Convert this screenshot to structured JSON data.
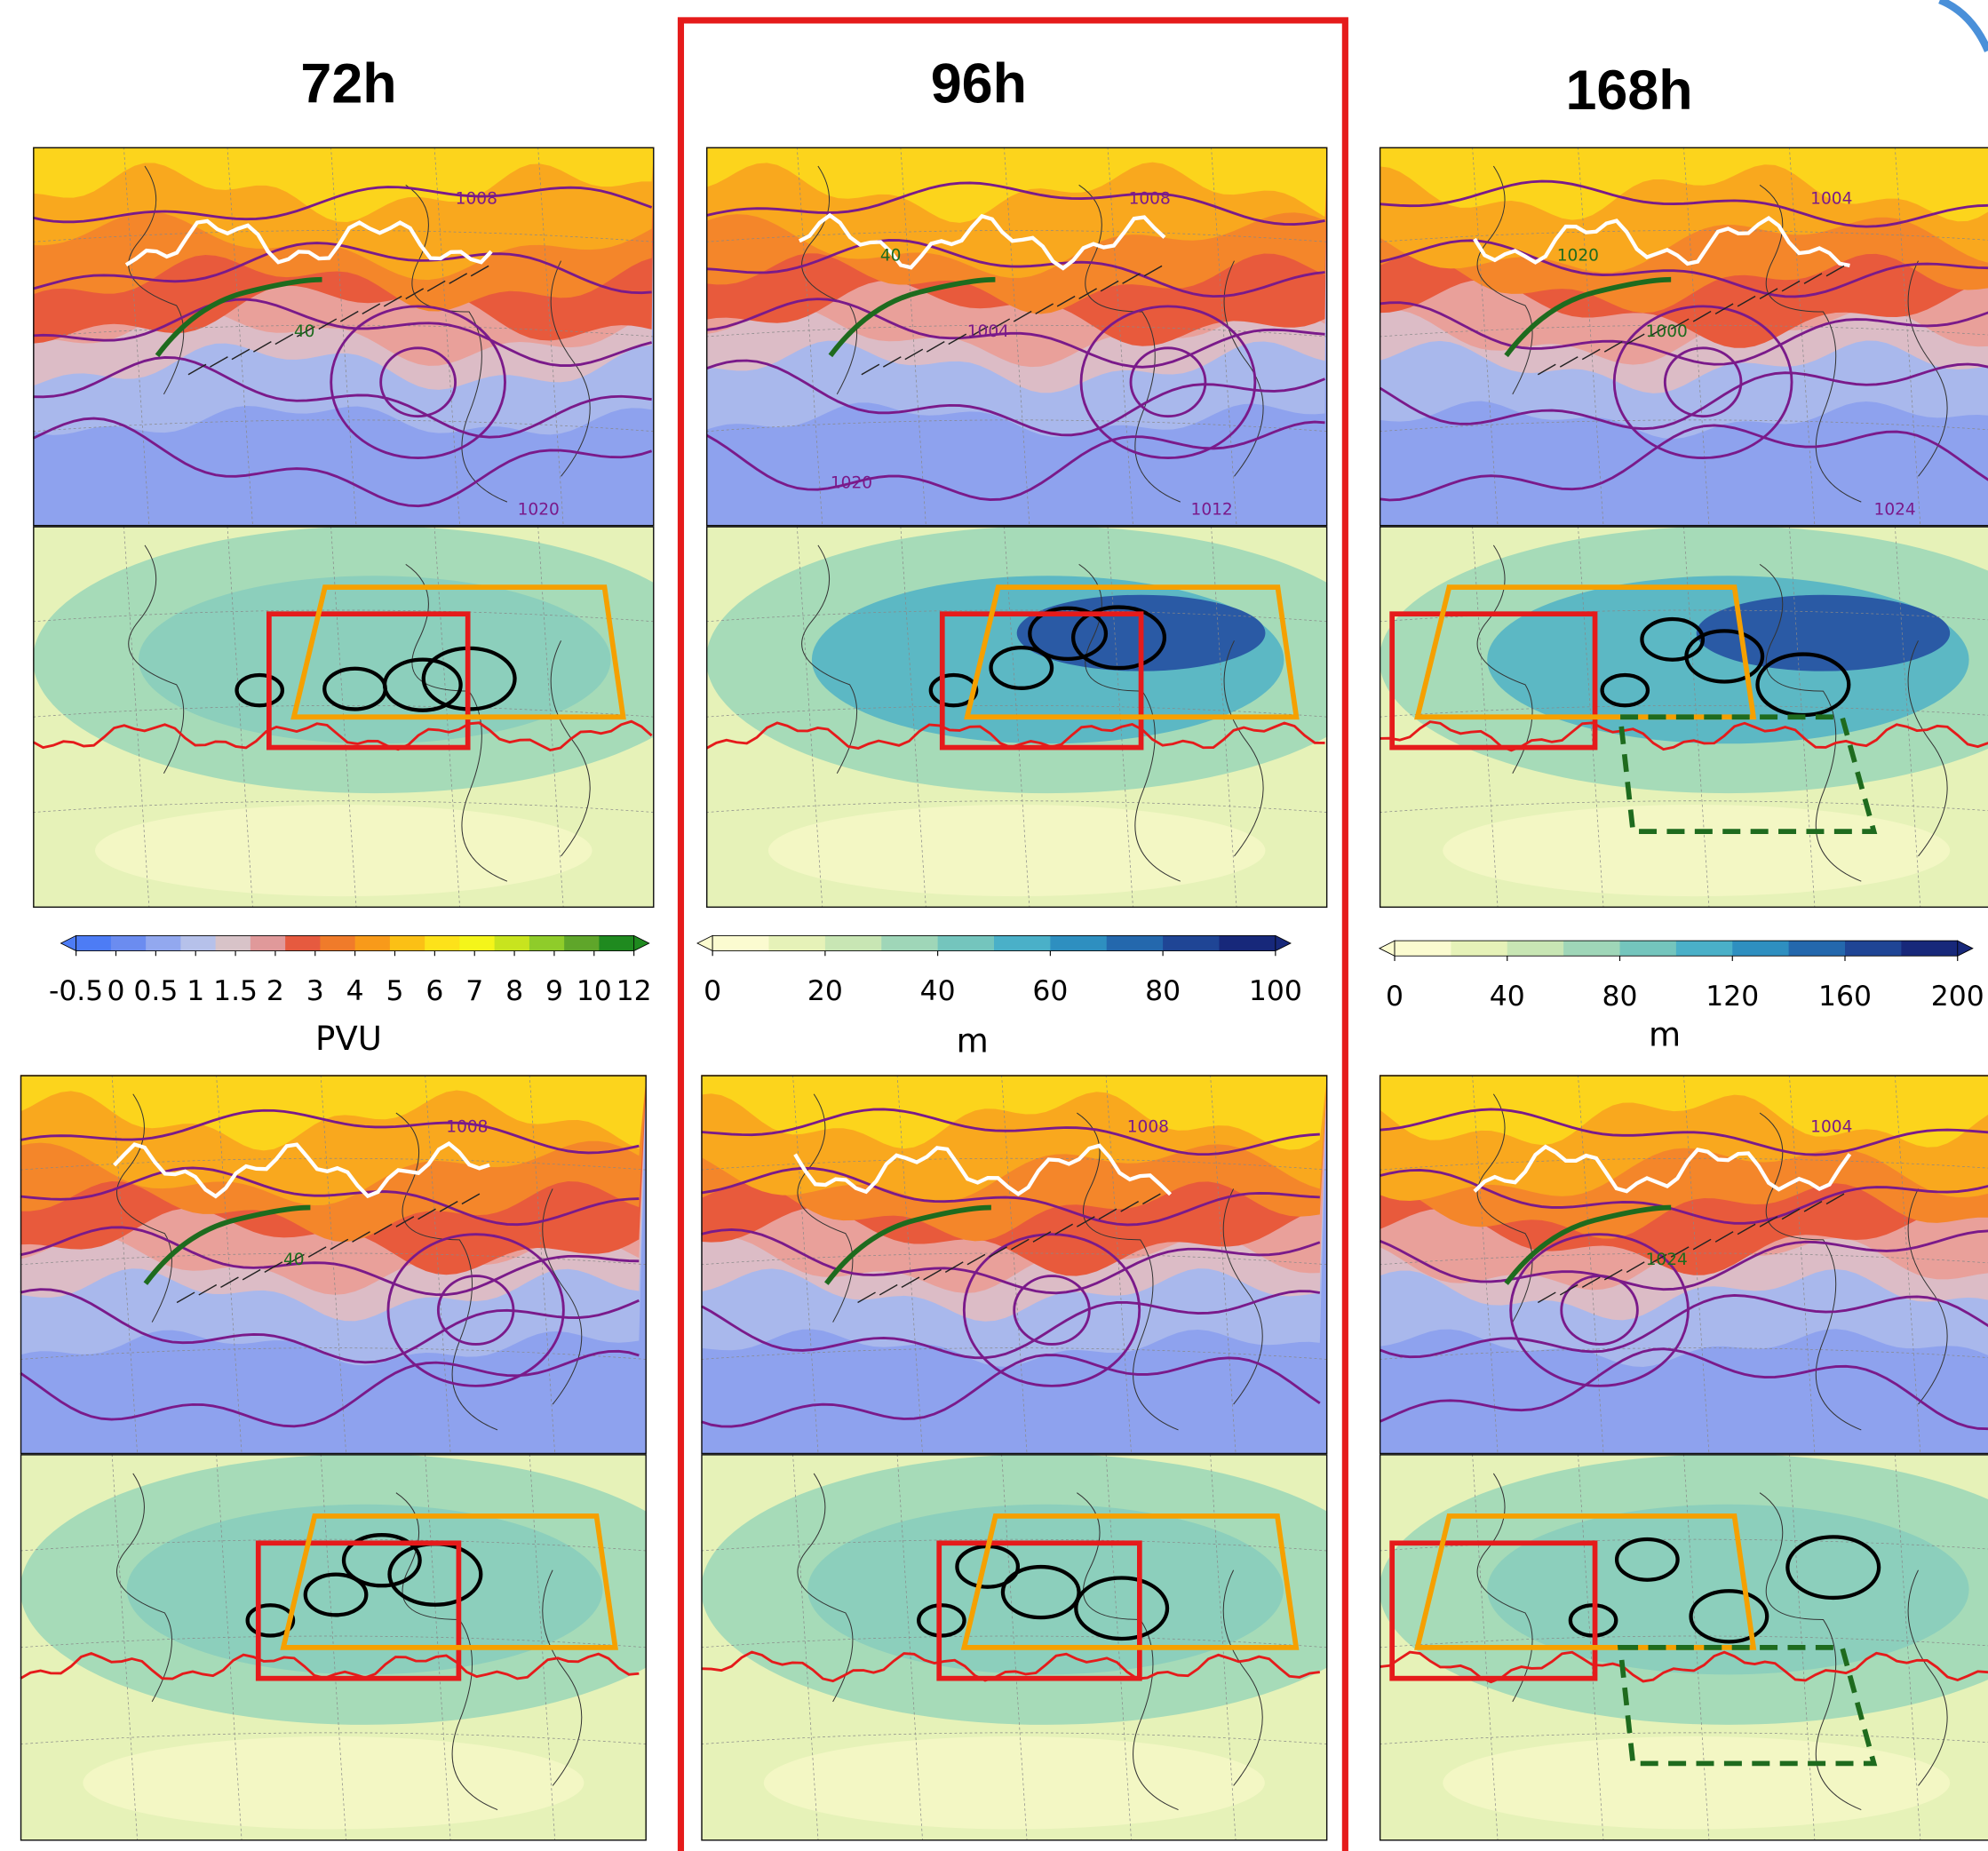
{
  "columns": [
    {
      "title": "72h",
      "colorbar": {
        "ticks": [
          -0.5,
          0,
          0.5,
          1,
          1.5,
          2,
          3,
          4,
          5,
          6,
          7,
          8,
          9,
          10,
          12
        ],
        "unit": "PVU"
      },
      "rows": [
        {
          "contour_labels": [
            "1008",
            "40",
            "1020"
          ]
        },
        {
          "contour_labels": [
            "1008",
            "40"
          ]
        }
      ]
    },
    {
      "title": "96h",
      "colorbar": {
        "ticks": [
          0,
          20,
          40,
          60,
          80,
          100
        ],
        "unit": "m"
      },
      "rows": [
        {
          "contour_labels": [
            "1008",
            "1004",
            "1012",
            "40",
            "1020"
          ]
        },
        {
          "contour_labels": [
            "1008"
          ]
        }
      ]
    },
    {
      "title": "168h",
      "colorbar": {
        "ticks": [
          0,
          40,
          80,
          120,
          160,
          200
        ],
        "unit": "m"
      },
      "rows": [
        {
          "contour_labels": [
            "1004",
            "1000",
            "1024",
            "1020"
          ]
        },
        {
          "contour_labels": [
            "1004",
            "1024"
          ]
        }
      ]
    }
  ]
}
